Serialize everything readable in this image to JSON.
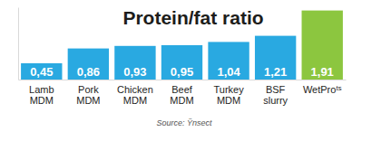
{
  "chart_data": {
    "type": "bar",
    "title": "Protein/fat ratio",
    "categories": [
      "Lamb MDM",
      "Pork MDM",
      "Chicken MDM",
      "Beef MDM",
      "Turkey MDM",
      "BSF slurry",
      "WetProᵗˢ"
    ],
    "values": [
      0.45,
      0.86,
      0.93,
      0.95,
      1.04,
      1.21,
      1.91
    ],
    "value_labels": [
      "0,45",
      "0,86",
      "0,93",
      "0,95",
      "1,04",
      "1,21",
      "1,91"
    ],
    "colors": [
      "#29a9e1",
      "#29a9e1",
      "#29a9e1",
      "#29a9e1",
      "#29a9e1",
      "#29a9e1",
      "#8cc63f"
    ],
    "ylim": [
      0,
      2
    ],
    "data_labels": true,
    "tick_labels": "x",
    "annotations": [
      "Source: Ÿnsect"
    ]
  }
}
